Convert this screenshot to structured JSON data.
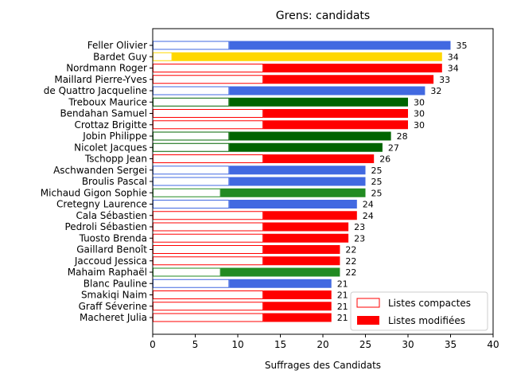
{
  "chart_data": {
    "type": "bar",
    "orientation": "horizontal",
    "title": "Grens: candidats",
    "xlabel": "Suffrages des Candidats",
    "ylabel": "",
    "xlim": [
      0,
      40
    ],
    "xticks": [
      0,
      5,
      10,
      15,
      20,
      25,
      30,
      35,
      40
    ],
    "grid": false,
    "legend_position": "bottom-right",
    "legend": [
      {
        "label": "Listes compactes",
        "style": "outline"
      },
      {
        "label": "Listes modifiées",
        "style": "filled"
      }
    ],
    "colors": {
      "blue": "#4169E1",
      "yellow": "#FFD700",
      "red": "#FF0000",
      "darkgreen": "#006400",
      "forestgreen": "#228B22"
    },
    "candidates": [
      {
        "name": "Feller Olivier",
        "total": 35,
        "compactes": 9,
        "color": "blue"
      },
      {
        "name": "Bardet Guy",
        "total": 34,
        "compactes": 2.3,
        "color": "yellow"
      },
      {
        "name": "Nordmann Roger",
        "total": 34,
        "compactes": 13,
        "color": "red"
      },
      {
        "name": "Maillard Pierre-Yves",
        "total": 33,
        "compactes": 13,
        "color": "red"
      },
      {
        "name": "de Quattro Jacqueline",
        "total": 32,
        "compactes": 9,
        "color": "blue"
      },
      {
        "name": "Treboux Maurice",
        "total": 30,
        "compactes": 9,
        "color": "darkgreen"
      },
      {
        "name": "Bendahan Samuel",
        "total": 30,
        "compactes": 13,
        "color": "red"
      },
      {
        "name": "Crottaz Brigitte",
        "total": 30,
        "compactes": 13,
        "color": "red"
      },
      {
        "name": "Jobin Philippe",
        "total": 28,
        "compactes": 9,
        "color": "darkgreen"
      },
      {
        "name": "Nicolet Jacques",
        "total": 27,
        "compactes": 9,
        "color": "darkgreen"
      },
      {
        "name": "Tschopp Jean",
        "total": 26,
        "compactes": 13,
        "color": "red"
      },
      {
        "name": "Aschwanden Sergei",
        "total": 25,
        "compactes": 9,
        "color": "blue"
      },
      {
        "name": "Broulis Pascal",
        "total": 25,
        "compactes": 9,
        "color": "blue"
      },
      {
        "name": "Michaud Gigon Sophie",
        "total": 25,
        "compactes": 8,
        "color": "forestgreen"
      },
      {
        "name": "Cretegny Laurence",
        "total": 24,
        "compactes": 9,
        "color": "blue"
      },
      {
        "name": "Cala Sébastien",
        "total": 24,
        "compactes": 13,
        "color": "red"
      },
      {
        "name": "Pedroli Sébastien",
        "total": 23,
        "compactes": 13,
        "color": "red"
      },
      {
        "name": "Tuosto Brenda",
        "total": 23,
        "compactes": 13,
        "color": "red"
      },
      {
        "name": "Gaillard Benoît",
        "total": 22,
        "compactes": 13,
        "color": "red"
      },
      {
        "name": "Jaccoud Jessica",
        "total": 22,
        "compactes": 13,
        "color": "red"
      },
      {
        "name": "Mahaim Raphaël",
        "total": 22,
        "compactes": 8,
        "color": "forestgreen"
      },
      {
        "name": "Blanc Pauline",
        "total": 21,
        "compactes": 9,
        "color": "blue"
      },
      {
        "name": "Smakiqi Naim",
        "total": 21,
        "compactes": 13,
        "color": "red"
      },
      {
        "name": "Graff Séverine",
        "total": 21,
        "compactes": 13,
        "color": "red"
      },
      {
        "name": "Macheret Julia",
        "total": 21,
        "compactes": 13,
        "color": "red"
      }
    ]
  }
}
